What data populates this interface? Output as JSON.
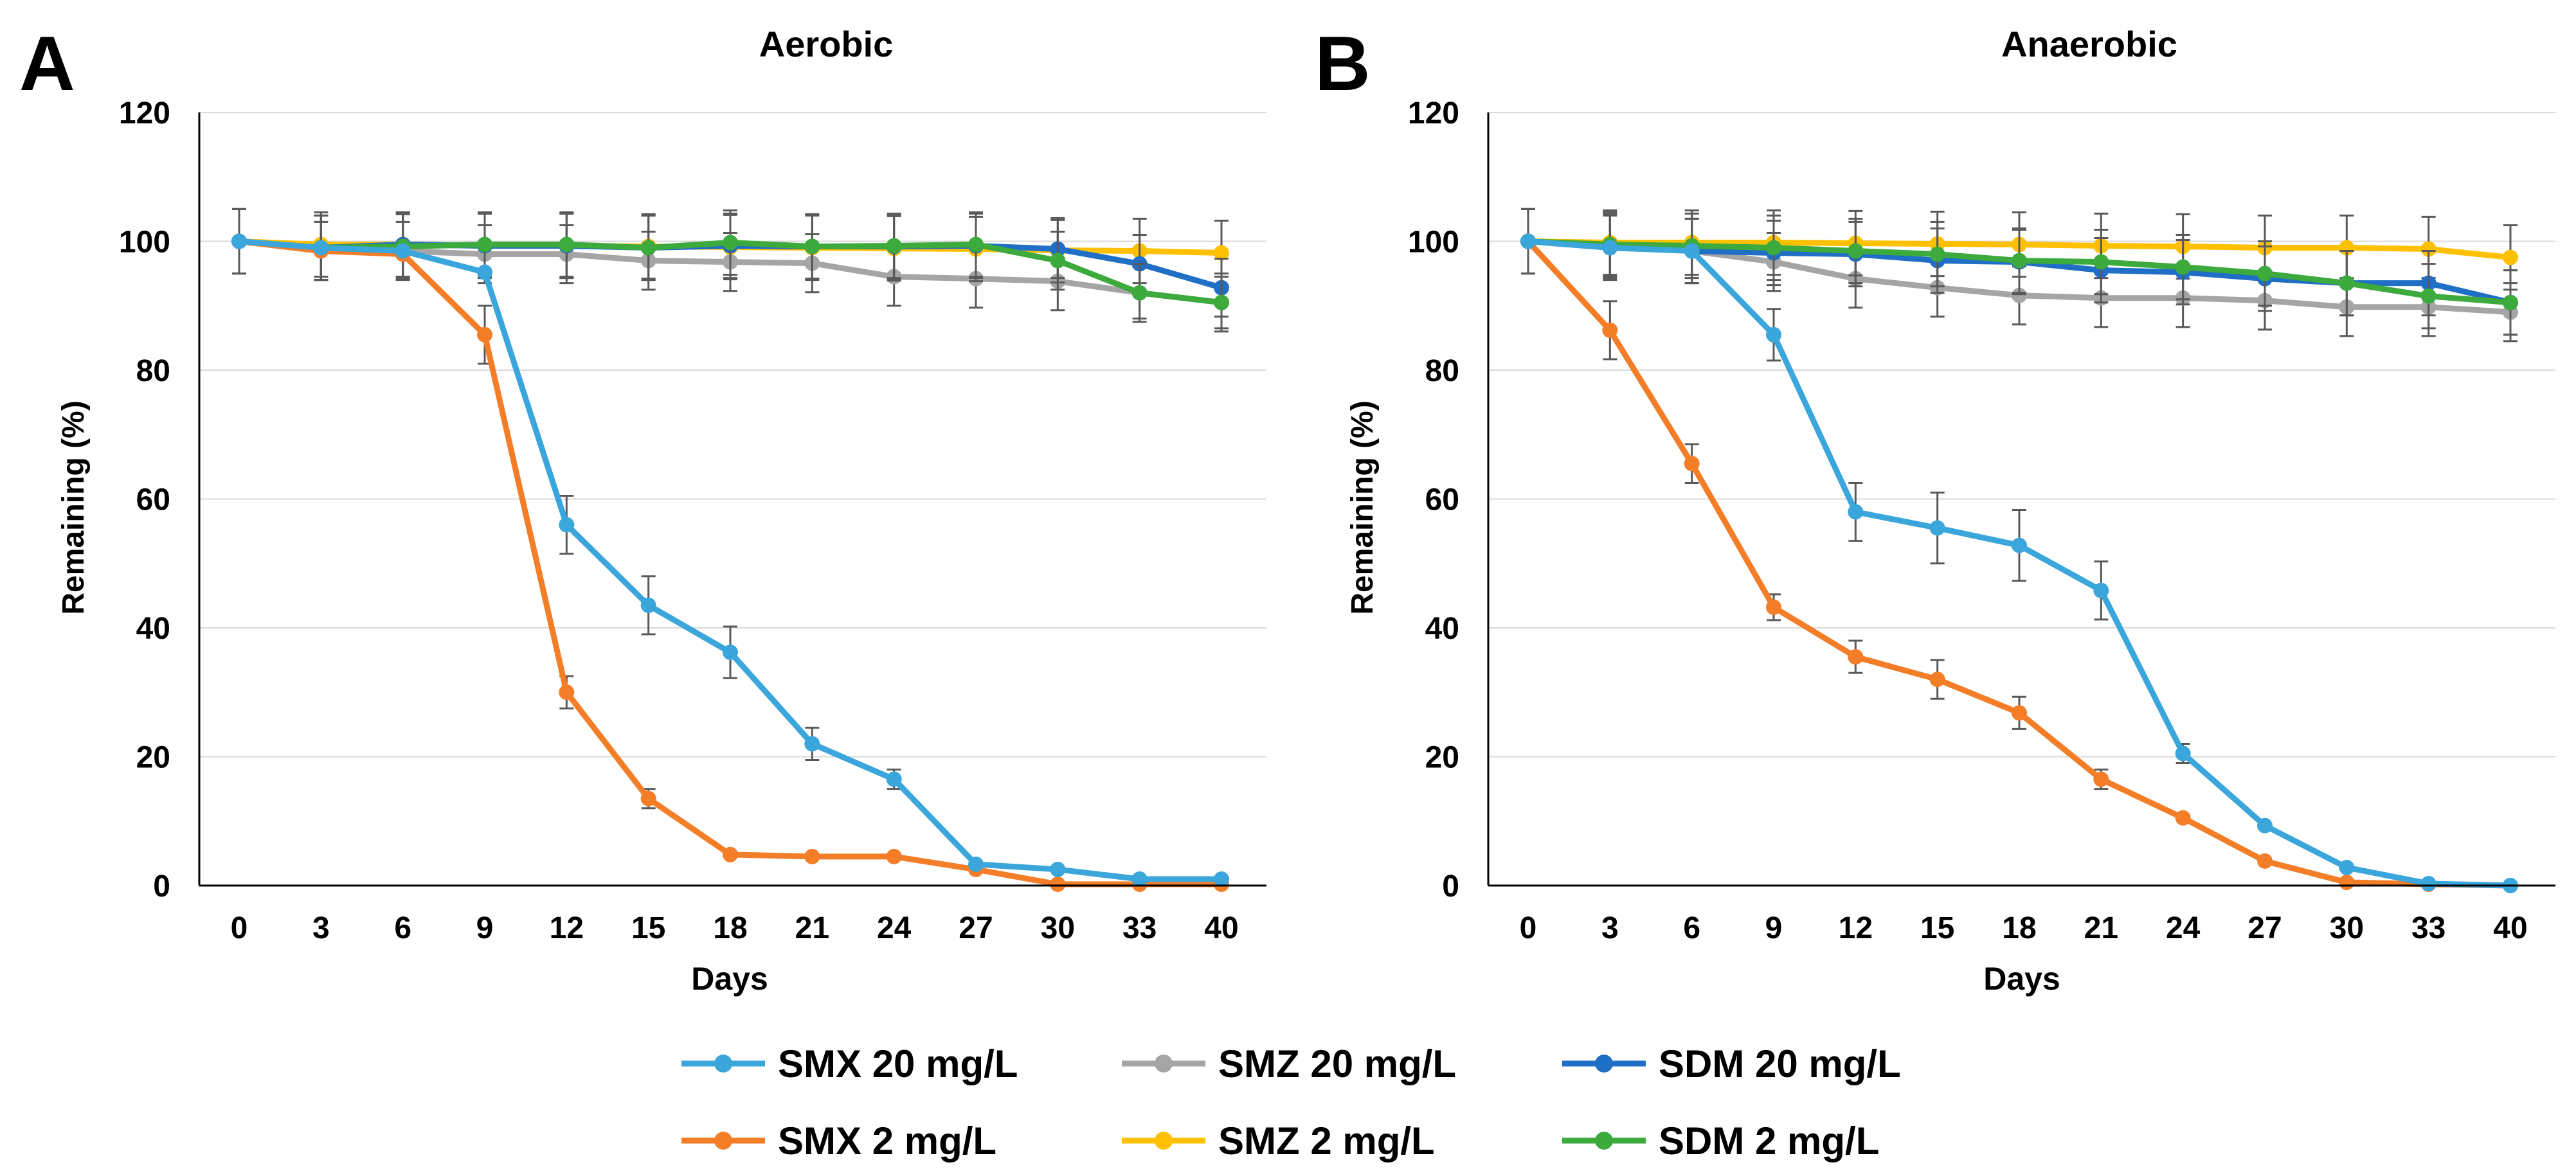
{
  "figure": {
    "ylabel": "Remaining (%)",
    "xlabel": "Days"
  },
  "chart_data": [
    {
      "type": "line",
      "panel_label": "A",
      "title": "Aerobic",
      "xlabel": "Days",
      "ylabel": "Remaining (%)",
      "categories": [
        "0",
        "3",
        "6",
        "9",
        "12",
        "15",
        "18",
        "21",
        "24",
        "27",
        "30",
        "33",
        "40"
      ],
      "ylim": [
        0,
        120
      ],
      "yticks": [
        0,
        20,
        40,
        60,
        80,
        100,
        120
      ],
      "grid": true,
      "legend_position": "bottom",
      "series": [
        {
          "name": "SMZ 20 mg/L",
          "color": "#a5a5a5",
          "values": [
            100,
            98.5,
            98.5,
            98,
            98,
            97,
            96.8,
            96.6,
            94.5,
            94.2,
            93.8,
            92,
            90.5
          ],
          "errors": [
            5,
            4.5,
            4.5,
            4.5,
            4.5,
            4.5,
            4.5,
            4.5,
            4.5,
            4.5,
            4.5,
            4,
            4
          ]
        },
        {
          "name": "SMZ 2 mg/L",
          "color": "#ffc000",
          "values": [
            100,
            99.5,
            99.5,
            99.3,
            99.3,
            99.2,
            99.1,
            99,
            98.9,
            98.8,
            98.6,
            98.5,
            98.2
          ],
          "errors": [
            5,
            5,
            5,
            5,
            5,
            5,
            5,
            5,
            5,
            5,
            5,
            5,
            5
          ]
        },
        {
          "name": "SDM 20 mg/L",
          "color": "#1f6fc6",
          "values": [
            100,
            99,
            99.5,
            99.3,
            99.3,
            99,
            99.3,
            99.2,
            99.2,
            99.3,
            98.8,
            96.5,
            92.8
          ],
          "errors": [
            5,
            5,
            5,
            5,
            5,
            5,
            5,
            5,
            5,
            5,
            4.5,
            4.5,
            4.5
          ]
        },
        {
          "name": "SDM 2 mg/L",
          "color": "#3caa3c",
          "values": [
            100,
            99,
            99.2,
            99.5,
            99.5,
            99,
            99.8,
            99.2,
            99.3,
            99.5,
            97,
            92,
            90.5
          ],
          "errors": [
            5,
            5,
            5,
            5,
            5,
            5,
            5,
            5,
            5,
            5,
            4.5,
            4.5,
            4.5
          ]
        },
        {
          "name": "SMX 2 mg/L",
          "color": "#f47d28",
          "values": [
            100,
            98.5,
            98,
            85.5,
            30,
            13.5,
            4.8,
            4.5,
            4.5,
            2.5,
            0.2,
            0.2,
            0.2
          ],
          "errors": [
            0,
            0,
            0,
            4.5,
            2.5,
            1.5,
            0,
            0,
            0,
            0,
            0,
            0,
            0
          ]
        },
        {
          "name": "SMX 20 mg/L",
          "color": "#3aa6dc",
          "values": [
            100,
            99,
            98.5,
            95.2,
            56,
            43.5,
            36.2,
            22,
            16.5,
            3.3,
            2.5,
            1,
            1
          ],
          "errors": [
            0,
            0,
            0,
            0,
            4.5,
            4.5,
            4,
            2.5,
            1.5,
            0,
            0,
            0,
            0
          ]
        }
      ]
    },
    {
      "type": "line",
      "panel_label": "B",
      "title": "Anaerobic",
      "xlabel": "Days",
      "ylabel": "Remaining (%)",
      "categories": [
        "0",
        "3",
        "6",
        "9",
        "12",
        "15",
        "18",
        "21",
        "24",
        "27",
        "30",
        "33",
        "40"
      ],
      "ylim": [
        0,
        120
      ],
      "yticks": [
        0,
        20,
        40,
        60,
        80,
        100,
        120
      ],
      "grid": true,
      "legend_position": "bottom",
      "series": [
        {
          "name": "SMZ 20 mg/L",
          "color": "#a5a5a5",
          "values": [
            100,
            99,
            98.5,
            96.8,
            94.2,
            92.8,
            91.6,
            91.2,
            91.2,
            90.8,
            89.8,
            89.8,
            89
          ],
          "errors": [
            5,
            5,
            5,
            4.5,
            4.5,
            4.5,
            4.5,
            4.5,
            4.5,
            4.5,
            4.5,
            4.5,
            4.5
          ]
        },
        {
          "name": "SMZ 2 mg/L",
          "color": "#ffc000",
          "values": [
            100,
            99.8,
            99.8,
            99.8,
            99.7,
            99.6,
            99.5,
            99.3,
            99.2,
            99,
            99,
            98.8,
            97.5
          ],
          "errors": [
            5,
            5,
            5,
            5,
            5,
            5,
            5,
            5,
            5,
            5,
            5,
            5,
            5
          ]
        },
        {
          "name": "SDM 20 mg/L",
          "color": "#1f6fc6",
          "values": [
            100,
            99.2,
            98.5,
            98.2,
            98,
            97,
            96.8,
            95.5,
            95.2,
            94.2,
            93.5,
            93.5,
            90.5
          ],
          "errors": [
            5,
            5,
            5,
            5,
            5,
            5,
            5,
            5,
            5,
            5,
            5,
            5,
            5
          ]
        },
        {
          "name": "SDM 2 mg/L",
          "color": "#3caa3c",
          "values": [
            100,
            99.5,
            99.3,
            99,
            98.5,
            98,
            97,
            96.8,
            96,
            95,
            93.5,
            91.5,
            90.5
          ],
          "errors": [
            5,
            5,
            5,
            5,
            5,
            5,
            5,
            5,
            5,
            5,
            5,
            5,
            5
          ]
        },
        {
          "name": "SMX 2 mg/L",
          "color": "#f47d28",
          "values": [
            100,
            86.2,
            65.5,
            43.2,
            35.5,
            32,
            26.8,
            16.5,
            10.5,
            3.8,
            0.5,
            0.2,
            0
          ],
          "errors": [
            0,
            4.5,
            3,
            2,
            2.5,
            3,
            2.5,
            1.5,
            0,
            0,
            0,
            0,
            0
          ]
        },
        {
          "name": "SMX 20 mg/L",
          "color": "#3aa6dc",
          "values": [
            100,
            99,
            98.5,
            85.5,
            58,
            55.5,
            52.8,
            45.8,
            20.5,
            9.3,
            2.8,
            0.3,
            0
          ],
          "errors": [
            0,
            0,
            0,
            4,
            4.5,
            5.5,
            5.5,
            4.5,
            1.5,
            0,
            0,
            0,
            0
          ]
        }
      ]
    }
  ],
  "legend": [
    {
      "name": "SMX 20 mg/L",
      "color": "#3aa6dc"
    },
    {
      "name": "SMZ 20 mg/L",
      "color": "#a5a5a5"
    },
    {
      "name": "SDM 20 mg/L",
      "color": "#1f6fc6"
    },
    {
      "name": "SMX 2 mg/L",
      "color": "#f47d28"
    },
    {
      "name": "SMZ 2 mg/L",
      "color": "#ffc000"
    },
    {
      "name": "SDM 2 mg/L",
      "color": "#3caa3c"
    }
  ]
}
